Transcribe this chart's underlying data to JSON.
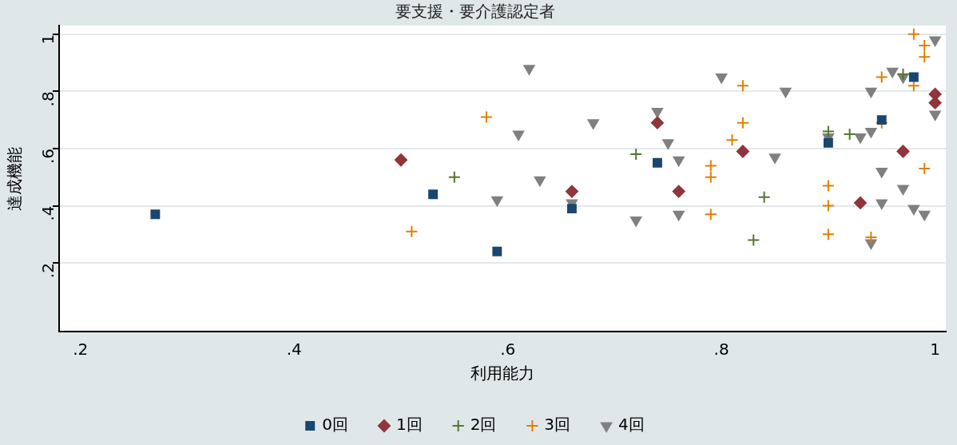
{
  "chart_data": {
    "type": "scatter",
    "title": "要支援・要介護認定者",
    "xlabel": "利用能力",
    "ylabel": "達成機能",
    "xlim": [
      0.18,
      1.01
    ],
    "xticks": [
      {
        "value": 0.2,
        "label": ".2"
      },
      {
        "value": 0.4,
        "label": ".4"
      },
      {
        "value": 0.6,
        "label": ".6"
      },
      {
        "value": 0.8,
        "label": ".8"
      },
      {
        "value": 1,
        "label": "1"
      }
    ],
    "ylim": [
      -0.04,
      1.03
    ],
    "yticks": [
      {
        "value": 0.2,
        "label": ".2"
      },
      {
        "value": 0.4,
        "label": ".4"
      },
      {
        "value": 0.6,
        "label": ".6"
      },
      {
        "value": 0.8,
        "label": ".8"
      },
      {
        "value": 1,
        "label": "1"
      }
    ],
    "grid": "y",
    "legend": "bottom",
    "series": [
      {
        "name": "0回",
        "color": "#1a476f",
        "marker": "square",
        "x": [
          0.27,
          0.53,
          0.59,
          0.66,
          0.74,
          0.9,
          0.95,
          0.98
        ],
        "values": [
          0.37,
          0.44,
          0.24,
          0.39,
          0.55,
          0.62,
          0.7,
          0.85
        ]
      },
      {
        "name": "1回",
        "color": "#90353b",
        "marker": "diamond",
        "x": [
          0.5,
          0.66,
          0.74,
          0.76,
          0.82,
          0.93,
          0.97,
          1.0,
          1.0
        ],
        "values": [
          0.56,
          0.45,
          0.69,
          0.45,
          0.59,
          0.41,
          0.59,
          0.79,
          0.76
        ]
      },
      {
        "name": "2回",
        "color": "#55752f",
        "marker": "cross",
        "x": [
          0.55,
          0.72,
          0.84,
          0.83,
          0.9,
          0.92,
          0.97
        ],
        "values": [
          0.5,
          0.58,
          0.43,
          0.28,
          0.66,
          0.65,
          0.86
        ]
      },
      {
        "name": "3回",
        "color": "#e37e00",
        "marker": "cross",
        "x": [
          0.51,
          0.58,
          0.79,
          0.79,
          0.79,
          0.81,
          0.82,
          0.82,
          0.9,
          0.9,
          0.9,
          0.94,
          0.95,
          0.95,
          0.98,
          0.98,
          0.99,
          0.99,
          0.99
        ],
        "values": [
          0.31,
          0.71,
          0.54,
          0.5,
          0.37,
          0.63,
          0.82,
          0.69,
          0.47,
          0.4,
          0.3,
          0.29,
          0.85,
          0.69,
          0.82,
          1.0,
          0.96,
          0.92,
          0.53
        ]
      },
      {
        "name": "4回",
        "color": "#808080",
        "marker": "triangle",
        "x": [
          0.59,
          0.62,
          0.61,
          0.63,
          0.66,
          0.68,
          0.72,
          0.74,
          0.75,
          0.76,
          0.76,
          0.8,
          0.85,
          0.86,
          0.9,
          0.93,
          0.94,
          0.94,
          0.94,
          0.95,
          0.95,
          0.96,
          0.97,
          0.97,
          0.98,
          0.99,
          1.0,
          1.0
        ],
        "values": [
          0.42,
          0.88,
          0.65,
          0.49,
          0.41,
          0.69,
          0.35,
          0.73,
          0.62,
          0.56,
          0.37,
          0.85,
          0.57,
          0.8,
          0.64,
          0.64,
          0.66,
          0.27,
          0.8,
          0.52,
          0.41,
          0.87,
          0.85,
          0.46,
          0.39,
          0.37,
          0.98,
          0.72
        ]
      }
    ]
  }
}
